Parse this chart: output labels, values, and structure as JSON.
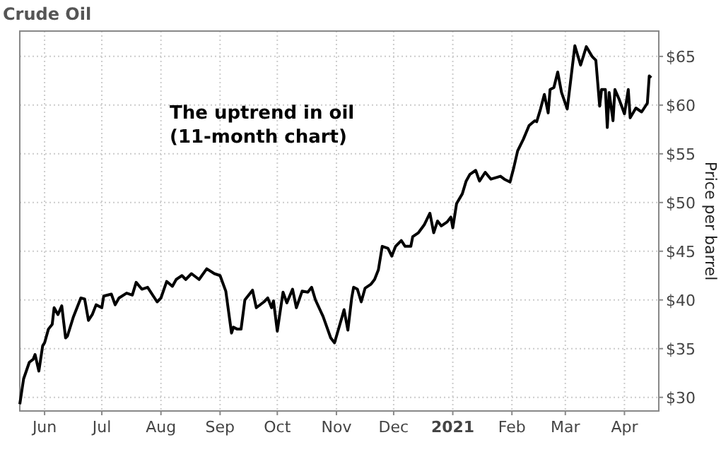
{
  "chart_data": {
    "type": "line",
    "title": "Crude Oil",
    "ylabel": "Price per barrel",
    "annotations": [
      "The uptrend in oil\n(11-month chart)"
    ],
    "x": [
      "2020-05-19",
      "2020-05-21",
      "2020-05-24",
      "2020-05-26",
      "2020-05-27",
      "2020-05-29",
      "2020-05-31",
      "2020-06-01",
      "2020-06-03",
      "2020-06-05",
      "2020-06-06",
      "2020-06-08",
      "2020-06-10",
      "2020-06-12",
      "2020-06-13",
      "2020-06-16",
      "2020-06-20",
      "2020-06-22",
      "2020-06-24",
      "2020-06-26",
      "2020-06-28",
      "2020-07-01",
      "2020-07-02",
      "2020-07-06",
      "2020-07-08",
      "2020-07-10",
      "2020-07-14",
      "2020-07-17",
      "2020-07-19",
      "2020-07-22",
      "2020-07-25",
      "2020-07-30",
      "2020-08-01",
      "2020-08-04",
      "2020-08-07",
      "2020-08-09",
      "2020-08-12",
      "2020-08-14",
      "2020-08-17",
      "2020-08-21",
      "2020-08-25",
      "2020-08-29",
      "2020-09-01",
      "2020-09-04",
      "2020-09-07",
      "2020-09-08",
      "2020-09-10",
      "2020-09-12",
      "2020-09-14",
      "2020-09-18",
      "2020-09-20",
      "2020-09-24",
      "2020-09-26",
      "2020-09-28",
      "2020-09-29",
      "2020-10-01",
      "2020-10-04",
      "2020-10-06",
      "2020-10-09",
      "2020-10-11",
      "2020-10-14",
      "2020-10-17",
      "2020-10-19",
      "2020-10-21",
      "2020-10-25",
      "2020-10-29",
      "2020-10-31",
      "2020-11-04",
      "2020-11-05",
      "2020-11-07",
      "2020-11-09",
      "2020-11-10",
      "2020-11-12",
      "2020-11-14",
      "2020-11-16",
      "2020-11-19",
      "2020-11-21",
      "2020-11-23",
      "2020-11-25",
      "2020-11-28",
      "2020-11-30",
      "2020-12-02",
      "2020-12-05",
      "2020-12-07",
      "2020-12-10",
      "2020-12-11",
      "2020-12-14",
      "2020-12-17",
      "2020-12-20",
      "2020-12-22",
      "2020-12-24",
      "2020-12-26",
      "2020-12-29",
      "2020-12-31",
      "2021-01-01",
      "2021-01-03",
      "2021-01-06",
      "2021-01-08",
      "2021-01-10",
      "2021-01-13",
      "2021-01-15",
      "2021-01-18",
      "2021-01-21",
      "2021-01-26",
      "2021-01-28",
      "2021-01-31",
      "2021-02-02",
      "2021-02-04",
      "2021-02-07",
      "2021-02-10",
      "2021-02-13",
      "2021-02-14",
      "2021-02-16",
      "2021-02-18",
      "2021-02-20",
      "2021-02-21",
      "2021-02-23",
      "2021-02-25",
      "2021-02-27",
      "2021-03-02",
      "2021-03-06",
      "2021-03-09",
      "2021-03-12",
      "2021-03-15",
      "2021-03-17",
      "2021-03-19",
      "2021-03-20",
      "2021-03-22",
      "2021-03-23",
      "2021-03-24",
      "2021-03-26",
      "2021-03-27",
      "2021-03-29",
      "2021-04-01",
      "2021-04-03",
      "2021-04-04",
      "2021-04-07",
      "2021-04-10",
      "2021-04-12",
      "2021-04-13",
      "2021-04-14",
      "2021-04-15"
    ],
    "series": [
      {
        "color": "#000000",
        "values": [
          29.3,
          31.9,
          33.6,
          33.9,
          34.4,
          32.7,
          35.3,
          35.6,
          37.0,
          37.5,
          39.2,
          38.5,
          39.4,
          36.1,
          36.3,
          38.2,
          40.2,
          40.1,
          37.9,
          38.5,
          39.5,
          39.2,
          40.4,
          40.6,
          39.5,
          40.2,
          40.7,
          40.5,
          41.8,
          41.1,
          41.3,
          39.8,
          40.2,
          41.9,
          41.4,
          42.1,
          42.5,
          42.1,
          42.7,
          42.1,
          43.2,
          42.7,
          42.5,
          40.9,
          36.6,
          37.2,
          37.0,
          37.0,
          40.0,
          41.0,
          39.2,
          39.8,
          40.2,
          39.2,
          39.9,
          36.8,
          40.8,
          39.7,
          41.1,
          39.2,
          40.9,
          40.8,
          41.3,
          40.0,
          38.3,
          36.1,
          35.6,
          38.3,
          39.0,
          36.9,
          40.2,
          41.3,
          41.1,
          39.8,
          41.2,
          41.6,
          42.1,
          43.1,
          45.5,
          45.3,
          44.5,
          45.5,
          46.1,
          45.5,
          45.5,
          46.5,
          46.9,
          47.7,
          48.9,
          46.9,
          48.1,
          47.6,
          48.0,
          48.5,
          47.4,
          49.9,
          50.9,
          52.2,
          52.9,
          53.3,
          52.2,
          53.1,
          52.4,
          52.7,
          52.4,
          52.1,
          53.6,
          55.3,
          56.5,
          57.9,
          58.4,
          58.3,
          59.6,
          61.1,
          59.2,
          61.6,
          61.8,
          63.4,
          61.3,
          59.6,
          66.1,
          64.1,
          66.0,
          65.0,
          64.6,
          59.9,
          61.6,
          61.6,
          57.7,
          61.3,
          58.4,
          61.6,
          60.7,
          59.1,
          61.6,
          58.7,
          59.7,
          59.3,
          59.9,
          60.2,
          63.0,
          62.8
        ]
      }
    ],
    "xlim": [
      "2020-05-19",
      "2021-04-19"
    ],
    "xticks": [
      {
        "value": "2020-06-01",
        "label": "Jun"
      },
      {
        "value": "2020-07-01",
        "label": "Jul"
      },
      {
        "value": "2020-08-01",
        "label": "Aug"
      },
      {
        "value": "2020-09-01",
        "label": "Sep"
      },
      {
        "value": "2020-10-01",
        "label": "Oct"
      },
      {
        "value": "2020-11-01",
        "label": "Nov"
      },
      {
        "value": "2020-12-01",
        "label": "Dec"
      },
      {
        "value": "2021-01-01",
        "label": "2021"
      },
      {
        "value": "2021-02-01",
        "label": "Feb"
      },
      {
        "value": "2021-03-01",
        "label": "Mar"
      },
      {
        "value": "2021-04-01",
        "label": "Apr"
      }
    ],
    "ylim": [
      28.6,
      67.6
    ],
    "yticks": [
      {
        "value": 30,
        "label": "$30"
      },
      {
        "value": 35,
        "label": "$35"
      },
      {
        "value": 40,
        "label": "$40"
      },
      {
        "value": 45,
        "label": "$45"
      },
      {
        "value": 50,
        "label": "$50"
      },
      {
        "value": 55,
        "label": "$55"
      },
      {
        "value": 60,
        "label": "$60"
      },
      {
        "value": 65,
        "label": "$65"
      }
    ],
    "grid": true,
    "line_style": "solid"
  }
}
